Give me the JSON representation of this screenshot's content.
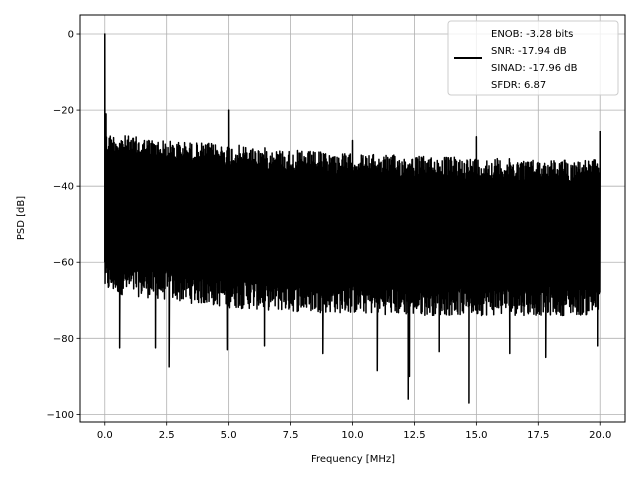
{
  "chart_data": {
    "type": "line",
    "title": "",
    "xlabel": "Frequency [MHz]",
    "ylabel": "PSD [dB]",
    "xlim": [
      -1.0,
      21.0
    ],
    "ylim": [
      -102,
      5
    ],
    "x_ticks": [
      0.0,
      2.5,
      5.0,
      7.5,
      10.0,
      12.5,
      15.0,
      17.5,
      20.0
    ],
    "x_tick_labels": [
      "0.0",
      "2.5",
      "5.0",
      "7.5",
      "10.0",
      "12.5",
      "15.0",
      "17.5",
      "20.0"
    ],
    "y_ticks": [
      0,
      -20,
      -40,
      -60,
      -80,
      -100
    ],
    "y_tick_labels": [
      "0",
      "−20",
      "−40",
      "−60",
      "−80",
      "−100"
    ],
    "grid": true,
    "line_color": "#000000",
    "legend": {
      "placement": "top-right",
      "entries": [
        "ENOB: -3.28 bits",
        "SNR: -17.94 dB",
        "SINAD: -17.96 dB",
        "SFDR: 6.87"
      ]
    },
    "series": [
      {
        "x_range": [
          0.0,
          20.0
        ],
        "upper_envelope": [
          [
            0.0,
            -26
          ],
          [
            2.5,
            -28
          ],
          [
            5.0,
            -29
          ],
          [
            7.5,
            -30.5
          ],
          [
            10.0,
            -31.5
          ],
          [
            12.5,
            -32
          ],
          [
            15.0,
            -32.5
          ],
          [
            17.5,
            -33
          ],
          [
            20.0,
            -33
          ]
        ],
        "lower_envelope": [
          [
            0.0,
            -68
          ],
          [
            2.5,
            -70
          ],
          [
            5.0,
            -72
          ],
          [
            7.5,
            -73
          ],
          [
            10.0,
            -73.5
          ],
          [
            12.5,
            -74
          ],
          [
            15.0,
            -74
          ],
          [
            17.5,
            -74
          ],
          [
            20.0,
            -74
          ]
        ],
        "peaks": [
          {
            "x": 0.0,
            "y": 0
          },
          {
            "x": 0.05,
            "y": -21
          },
          {
            "x": 5.0,
            "y": -20
          },
          {
            "x": 10.0,
            "y": -28
          },
          {
            "x": 15.0,
            "y": -27
          },
          {
            "x": 20.0,
            "y": -25.5
          }
        ],
        "dips": [
          {
            "x": 0.6,
            "y": -82.5
          },
          {
            "x": 2.05,
            "y": -82.5
          },
          {
            "x": 2.6,
            "y": -87.5
          },
          {
            "x": 4.95,
            "y": -83
          },
          {
            "x": 6.45,
            "y": -82
          },
          {
            "x": 8.8,
            "y": -84
          },
          {
            "x": 11.0,
            "y": -88.5
          },
          {
            "x": 12.25,
            "y": -96
          },
          {
            "x": 12.3,
            "y": -90
          },
          {
            "x": 13.5,
            "y": -83.5
          },
          {
            "x": 14.7,
            "y": -97
          },
          {
            "x": 16.35,
            "y": -84
          },
          {
            "x": 17.8,
            "y": -85
          },
          {
            "x": 19.9,
            "y": -82
          }
        ]
      }
    ]
  }
}
